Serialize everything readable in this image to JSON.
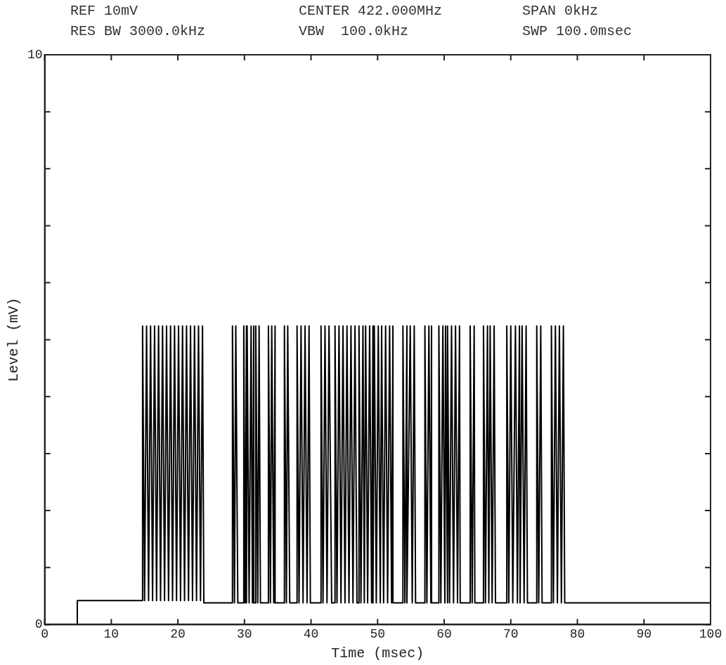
{
  "chart_data": {
    "type": "line",
    "xlabel": "Time (msec)",
    "ylabel": "Level (mV)",
    "annotations": [
      "REF 10mV",
      "CENTER 422.000MHz",
      "SPAN 0kHz",
      "RES BW 3000.0kHz",
      "VBW  100.0kHz",
      "SWP 100.0msec"
    ],
    "xlim": [
      0,
      100
    ],
    "ylim": [
      0,
      10
    ],
    "xticks": [
      0,
      10,
      20,
      30,
      40,
      50,
      60,
      70,
      80,
      90,
      100
    ],
    "yticks": [
      0,
      {
        "value": 1,
        "label": null
      },
      {
        "value": 2,
        "label": null
      },
      {
        "value": 3,
        "label": null
      },
      {
        "value": 4,
        "label": null
      },
      {
        "value": 5,
        "label": null
      },
      {
        "value": 6,
        "label": null
      },
      {
        "value": 7,
        "label": null
      },
      {
        "value": 8,
        "label": null
      },
      {
        "value": 9,
        "label": null
      },
      10
    ],
    "grid": false,
    "legend": false,
    "marker": "none",
    "line_style": "solid",
    "series": [
      {
        "color": "#000000",
        "x": [
          0,
          4.9,
          4.9,
          14.7,
          14.7,
          15.0,
          15.3,
          15.6,
          15.9,
          16.2,
          16.5,
          16.8,
          17.1,
          17.4,
          17.7,
          18.0,
          18.3,
          18.6,
          18.9,
          19.2,
          19.5,
          19.8,
          20.1,
          20.4,
          20.7,
          21.0,
          21.3,
          21.6,
          21.9,
          22.2,
          22.5,
          22.8,
          23.1,
          23.4,
          23.7,
          23.9,
          28.2,
          28.2,
          28.5,
          28.7,
          29.0,
          29.9,
          29.9,
          30.1,
          30.3,
          30.3,
          30.4,
          30.7,
          31.0,
          31.2,
          31.4,
          31.4,
          31.7,
          31.7,
          32.0,
          32.2,
          32.4,
          33.6,
          33.6,
          33.9,
          34.1,
          34.4,
          34.6,
          34.6,
          36.0,
          36.0,
          36.3,
          36.5,
          36.8,
          37.9,
          37.9,
          38.2,
          38.5,
          38.8,
          39.1,
          39.4,
          39.7,
          39.9,
          41.5,
          41.5,
          41.8,
          42.1,
          42.4,
          42.7,
          43.1,
          43.6,
          43.6,
          43.9,
          44.2,
          44.5,
          44.8,
          45.1,
          45.4,
          45.7,
          46.0,
          46.3,
          46.6,
          46.9,
          47.2,
          47.2,
          47.5,
          47.8,
          48.0,
          48.2,
          48.5,
          48.8,
          49.1,
          49.3,
          49.3,
          49.5,
          49.8,
          50.1,
          50.4,
          50.6,
          50.9,
          51.2,
          51.5,
          51.8,
          52.1,
          52.3,
          52.3,
          53.8,
          53.8,
          54.1,
          54.4,
          54.4,
          54.9,
          55.2,
          55.5,
          55.7,
          57.1,
          57.1,
          57.4,
          57.7,
          58.0,
          58.1,
          58.1,
          59.2,
          59.2,
          59.5,
          59.8,
          60.1,
          60.2,
          60.5,
          60.5,
          60.8,
          61.1,
          61.4,
          61.7,
          62.0,
          62.3,
          62.4,
          63.9,
          63.9,
          64.2,
          64.5,
          64.6,
          65.9,
          65.9,
          66.2,
          66.5,
          66.7,
          66.9,
          67.2,
          67.5,
          67.7,
          69.4,
          69.4,
          69.7,
          70.0,
          70.3,
          70.7,
          71.0,
          71.3,
          71.4,
          71.7,
          72.0,
          72.3,
          72.5,
          73.9,
          73.9,
          74.2,
          74.5,
          74.7,
          76.1,
          76.1,
          76.4,
          76.7,
          77.0,
          77.3,
          77.6,
          77.9,
          78.1,
          100
        ],
        "values": [
          0,
          0,
          0.42,
          0.42,
          5.24,
          0.42,
          5.24,
          0.42,
          5.24,
          0.42,
          5.24,
          0.42,
          5.24,
          0.42,
          5.24,
          0.42,
          5.24,
          0.42,
          5.24,
          0.42,
          5.24,
          0.42,
          5.24,
          0.42,
          5.24,
          0.42,
          5.24,
          0.42,
          5.24,
          0.42,
          5.24,
          0.42,
          5.24,
          0.42,
          5.24,
          0.38,
          0.38,
          5.24,
          0.38,
          5.24,
          0.38,
          0.38,
          5.24,
          0.38,
          5.24,
          0.38,
          5.24,
          0.38,
          5.24,
          0.38,
          5.24,
          0.38,
          0.38,
          5.24,
          0.38,
          5.24,
          0.38,
          0.38,
          5.24,
          0.38,
          5.24,
          0.38,
          5.24,
          0.38,
          0.38,
          5.24,
          0.38,
          5.24,
          0.38,
          0.38,
          5.24,
          0.38,
          5.24,
          0.38,
          5.24,
          0.38,
          5.24,
          0.38,
          0.38,
          5.24,
          0.38,
          5.24,
          0.38,
          5.24,
          0.38,
          0.38,
          5.24,
          0.38,
          5.24,
          0.38,
          5.24,
          0.38,
          5.24,
          0.38,
          5.24,
          0.38,
          5.24,
          0.38,
          0.38,
          5.24,
          0.38,
          5.24,
          0.38,
          5.24,
          0.38,
          5.24,
          0.38,
          5.24,
          0.38,
          5.24,
          0.38,
          5.24,
          0.38,
          5.24,
          0.38,
          5.24,
          0.38,
          5.24,
          0.38,
          5.24,
          0.38,
          0.38,
          5.24,
          0.38,
          5.24,
          0.38,
          5.24,
          0.38,
          5.24,
          0.38,
          0.38,
          5.24,
          0.38,
          5.24,
          0.38,
          5.24,
          0.38,
          0.38,
          5.24,
          0.38,
          5.24,
          0.38,
          5.24,
          0.38,
          5.24,
          0.38,
          5.24,
          0.38,
          5.24,
          0.38,
          5.24,
          0.38,
          0.38,
          5.24,
          0.38,
          5.24,
          0.38,
          0.38,
          5.24,
          0.38,
          5.24,
          0.38,
          5.24,
          0.38,
          5.24,
          0.38,
          0.38,
          5.24,
          0.38,
          5.24,
          0.38,
          5.24,
          0.38,
          5.24,
          0.38,
          5.24,
          0.38,
          5.24,
          0.38,
          0.38,
          5.24,
          0.38,
          5.24,
          0.38,
          0.38,
          5.24,
          0.38,
          5.24,
          0.38,
          5.24,
          0.38,
          5.24,
          0.38,
          0.38
        ]
      }
    ]
  }
}
